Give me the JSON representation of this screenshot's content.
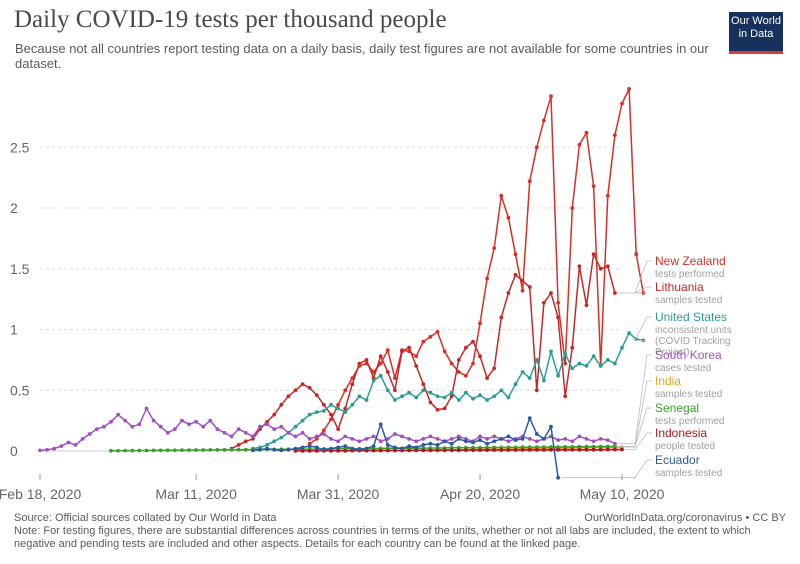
{
  "title": "Daily COVID-19 tests per thousand people",
  "subtitle": "Because not all countries report testing data on a daily basis, daily test figures are not available for some countries in our dataset.",
  "logo": {
    "line1": "Our World",
    "line2": "in Data",
    "bg_color": "#16325c",
    "accent_color": "#d73b3e"
  },
  "footer": {
    "source": "Source: Official sources collated by Our World in Data",
    "url": "OurWorldInData.org/coronavirus • CC BY",
    "note": "Note: For testing figures, there are substantial differences across countries in terms of the units, whether or not all labs are included, the extent to which negative and pending tests are included and other aspects. Details for each country can be found at the linked page."
  },
  "chart_data": {
    "type": "line",
    "x_start": "2020-02-18",
    "x_end": "2020-05-10",
    "ylim": [
      0,
      3
    ],
    "y_ticks": [
      0,
      0.5,
      1,
      1.5,
      2,
      2.5
    ],
    "y_tick_labels": [
      "0",
      "0.5",
      "1",
      "1.5",
      "2",
      "2.5"
    ],
    "x_ticks": [
      {
        "label": "Feb 18, 2020",
        "day": 0
      },
      {
        "label": "Mar 11, 2020",
        "day": 22
      },
      {
        "label": "Mar 31, 2020",
        "day": 42
      },
      {
        "label": "Apr 20, 2020",
        "day": 62
      },
      {
        "label": "May 10, 2020",
        "day": 82
      }
    ],
    "grid": true,
    "legend": "right",
    "series": [
      {
        "name": "New Zealand",
        "desc": "tests performed",
        "color": "#d73027",
        "start": 38,
        "values": [
          0.06,
          0.1,
          0.17,
          0.26,
          0.38,
          0.5,
          0.6,
          0.7,
          0.72,
          0.65,
          0.72,
          0.83,
          0.6,
          0.83,
          0.82,
          0.78,
          0.9,
          0.94,
          0.98,
          0.82,
          0.72,
          0.65,
          0.62,
          0.72,
          1.05,
          1.42,
          1.67,
          2.1,
          1.92,
          1.62,
          1.32,
          2.22,
          2.5,
          2.72,
          2.92,
          1.22,
          0.72,
          2.0,
          2.52,
          2.62,
          2.18,
          0.7,
          2.1,
          2.6,
          2.86,
          2.98,
          1.62,
          1.3
        ]
      },
      {
        "name": "Lithuania",
        "desc": "samples tested",
        "color": "#c62828",
        "start": 27,
        "values": [
          0.02,
          0.05,
          0.08,
          0.1,
          0.18,
          0.24,
          0.3,
          0.38,
          0.45,
          0.5,
          0.55,
          0.52,
          0.46,
          0.38,
          0.3,
          0.18,
          0.35,
          0.55,
          0.72,
          0.75,
          0.6,
          0.78,
          0.65,
          0.5,
          0.82,
          0.85,
          0.7,
          0.55,
          0.4,
          0.34,
          0.35,
          0.45,
          0.75,
          0.85,
          0.9,
          0.78,
          0.6,
          0.68,
          1.1,
          1.3,
          1.45,
          1.4,
          1.35,
          0.5,
          1.22,
          1.3,
          1.1,
          0.45,
          0.85,
          1.52,
          1.2,
          1.62,
          1.5,
          1.52,
          1.3
        ]
      },
      {
        "name": "United States",
        "desc": "inconsistent units (COVID Tracking Project)",
        "color": "#2a9d99",
        "start": 30,
        "values": [
          0.02,
          0.03,
          0.05,
          0.08,
          0.11,
          0.15,
          0.2,
          0.25,
          0.3,
          0.32,
          0.33,
          0.38,
          0.35,
          0.32,
          0.38,
          0.45,
          0.42,
          0.58,
          0.62,
          0.5,
          0.42,
          0.45,
          0.48,
          0.44,
          0.5,
          0.48,
          0.45,
          0.44,
          0.48,
          0.42,
          0.48,
          0.43,
          0.46,
          0.42,
          0.45,
          0.5,
          0.44,
          0.55,
          0.65,
          0.6,
          0.75,
          0.58,
          0.82,
          0.62,
          0.8,
          0.68,
          0.72,
          0.7,
          0.78,
          0.7,
          0.75,
          0.72,
          0.85,
          0.97,
          0.92,
          0.91
        ]
      },
      {
        "name": "South Korea",
        "desc": "cases tested",
        "color": "#a44fc1",
        "start": 0,
        "values": [
          0.005,
          0.01,
          0.02,
          0.04,
          0.07,
          0.05,
          0.1,
          0.14,
          0.18,
          0.2,
          0.24,
          0.3,
          0.25,
          0.2,
          0.22,
          0.35,
          0.25,
          0.2,
          0.15,
          0.18,
          0.25,
          0.22,
          0.24,
          0.2,
          0.25,
          0.18,
          0.15,
          0.12,
          0.18,
          0.15,
          0.12,
          0.2,
          0.22,
          0.18,
          0.2,
          0.15,
          0.12,
          0.15,
          0.1,
          0.12,
          0.14,
          0.1,
          0.08,
          0.12,
          0.1,
          0.08,
          0.1,
          0.12,
          0.08,
          0.1,
          0.14,
          0.12,
          0.1,
          0.08,
          0.1,
          0.12,
          0.1,
          0.08,
          0.1,
          0.12,
          0.1,
          0.08,
          0.12,
          0.1,
          0.12,
          0.1,
          0.08,
          0.1,
          0.12,
          0.1,
          0.08,
          0.1,
          0.12,
          0.09,
          0.1,
          0.08,
          0.12,
          0.1,
          0.08,
          0.1,
          0.09,
          0.06
        ]
      },
      {
        "name": "India",
        "desc": "samples tested",
        "color": "#e6a01e",
        "start": 40,
        "values": [
          0.001,
          0.001,
          0.002,
          0.002,
          0.003,
          0.003,
          0.004,
          0.004,
          0.005,
          0.005,
          0.006,
          0.006,
          0.007,
          0.007,
          0.008,
          0.008,
          0.009,
          0.009,
          0.01,
          0.01,
          0.011,
          0.012,
          0.012,
          0.013,
          0.014,
          0.015,
          0.016,
          0.017,
          0.018,
          0.019,
          0.02,
          0.021,
          0.022,
          0.023,
          0.024,
          0.025,
          0.026,
          0.027,
          0.028,
          0.029,
          0.03,
          0.031,
          0.032
        ]
      },
      {
        "name": "Senegal",
        "desc": "tests performed",
        "color": "#3aa02c",
        "start": 10,
        "values": [
          0.002,
          0.002,
          0.003,
          0.003,
          0.004,
          0.004,
          0.005,
          0.005,
          0.006,
          0.006,
          0.007,
          0.007,
          0.008,
          0.008,
          0.009,
          0.009,
          0.01,
          0.01,
          0.011,
          0.011,
          0.012,
          0.012,
          0.013,
          0.013,
          0.014,
          0.014,
          0.015,
          0.015,
          0.016,
          0.016,
          0.017,
          0.017,
          0.018,
          0.018,
          0.019,
          0.019,
          0.02,
          0.02,
          0.021,
          0.021,
          0.022,
          0.022,
          0.023,
          0.023,
          0.024,
          0.024,
          0.025,
          0.025,
          0.026,
          0.026,
          0.027,
          0.027,
          0.028,
          0.028,
          0.029,
          0.029,
          0.03,
          0.03,
          0.031,
          0.031,
          0.032,
          0.032,
          0.033,
          0.033,
          0.034,
          0.034,
          0.035,
          0.035,
          0.036,
          0.036,
          0.037,
          0.037
        ]
      },
      {
        "name": "Indonesia",
        "desc": "people tested",
        "color": "#b5121b",
        "start": 36,
        "values": [
          0.001,
          0.001,
          0.001,
          0.001,
          0.002,
          0.002,
          0.002,
          0.002,
          0.003,
          0.003,
          0.003,
          0.003,
          0.004,
          0.004,
          0.004,
          0.004,
          0.005,
          0.005,
          0.005,
          0.005,
          0.006,
          0.006,
          0.006,
          0.006,
          0.007,
          0.007,
          0.007,
          0.007,
          0.008,
          0.008,
          0.008,
          0.008,
          0.009,
          0.009,
          0.009,
          0.009,
          0.01,
          0.01,
          0.01,
          0.01,
          0.011,
          0.011,
          0.011,
          0.011,
          0.012,
          0.012,
          0.012
        ]
      },
      {
        "name": "Ecuador",
        "desc": "samples tested",
        "color": "#2c5aa0",
        "start": 30,
        "values": [
          0.005,
          0.01,
          0.02,
          0.01,
          0.005,
          0.01,
          0.02,
          0.03,
          0.04,
          0.03,
          0.01,
          0.02,
          0.03,
          0.04,
          0.02,
          0.01,
          0.02,
          0.04,
          0.22,
          0.05,
          0.03,
          0.02,
          0.04,
          0.03,
          0.05,
          0.06,
          0.05,
          0.08,
          0.06,
          0.1,
          0.08,
          0.07,
          0.09,
          0.06,
          0.08,
          0.1,
          0.12,
          0.09,
          0.1,
          0.27,
          0.14,
          0.1,
          0.2,
          -0.22
        ]
      }
    ]
  }
}
